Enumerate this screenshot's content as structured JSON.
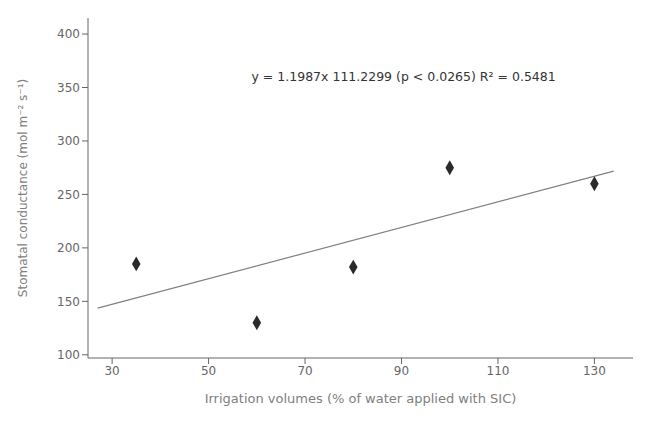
{
  "chart_data": {
    "type": "scatter",
    "xlabel": "Irrigation volumes (% of water applied with SIC)",
    "ylabel": "Stomatal conductance (mol m⁻² s⁻¹)",
    "annotation": "y = 1.1987x 111.2299 (p < 0.0265) R² = 0.5481",
    "xlim": [
      25,
      138
    ],
    "ylim": [
      97,
      415
    ],
    "xticks": [
      30,
      50,
      70,
      90,
      110,
      130
    ],
    "yticks": [
      100,
      150,
      200,
      250,
      300,
      350,
      400
    ],
    "grid": false,
    "series": [
      {
        "type": "line",
        "x": [
          27,
          134
        ],
        "values": [
          143.5948,
          271.8557
        ],
        "color": "#808080",
        "line_style": "solid"
      },
      {
        "type": "scatter",
        "x": [
          35,
          60,
          80,
          100,
          130
        ],
        "values": [
          185,
          130,
          182,
          275,
          260
        ],
        "color": "#2a2a2a",
        "marker": "diamond"
      }
    ]
  }
}
